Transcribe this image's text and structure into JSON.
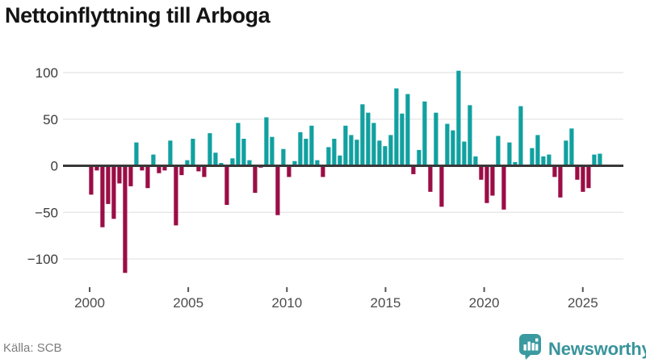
{
  "title": "Nettoinflyttning till Arboga",
  "source": "Källa: SCB",
  "brand": {
    "name": "Newsworthy"
  },
  "theme": {
    "positive_bar_color": "#11a0a0",
    "negative_bar_color": "#9b0d46",
    "zero_axis_color": "#383838",
    "gridline_color": "#e8e8e8",
    "axis_label_color": "#4c4c4c",
    "y_label_color": "#3b3b3b",
    "title_color": "#141414",
    "brand_color": "#39949b"
  },
  "chart_data": {
    "type": "bar",
    "title": "Nettoinflyttning till Arboga",
    "xlabel": "",
    "ylabel": "",
    "x_tick_years": [
      2000,
      2005,
      2010,
      2015,
      2020,
      2025
    ],
    "y_ticks": [
      -100,
      -50,
      0,
      50,
      100
    ],
    "ylim": [
      -125,
      125
    ],
    "x_start_year": 2000,
    "grid": "horizontal",
    "legend": "none",
    "values": [
      -31,
      -5,
      -66,
      -41,
      -57,
      -19,
      -115,
      -22,
      25,
      -5,
      -24,
      12,
      -8,
      -5,
      27,
      -64,
      -10,
      6,
      29,
      -6,
      -12,
      35,
      14,
      3,
      -42,
      8,
      46,
      29,
      6,
      -29,
      -2,
      52,
      31,
      -53,
      18,
      -12,
      5,
      36,
      29,
      43,
      6,
      -12,
      20,
      29,
      11,
      43,
      33,
      28,
      66,
      57,
      46,
      27,
      21,
      33,
      83,
      56,
      77,
      -9,
      17,
      69,
      -28,
      57,
      -44,
      45,
      38,
      102,
      26,
      65,
      10,
      -15,
      -40,
      -32,
      32,
      -47,
      25,
      4,
      64,
      0,
      19,
      33,
      10,
      12,
      -12,
      -34,
      27,
      40,
      -15,
      -28,
      -24,
      12,
      13
    ],
    "colors": {
      "positive": "#11a0a0",
      "negative": "#9b0d46"
    }
  }
}
